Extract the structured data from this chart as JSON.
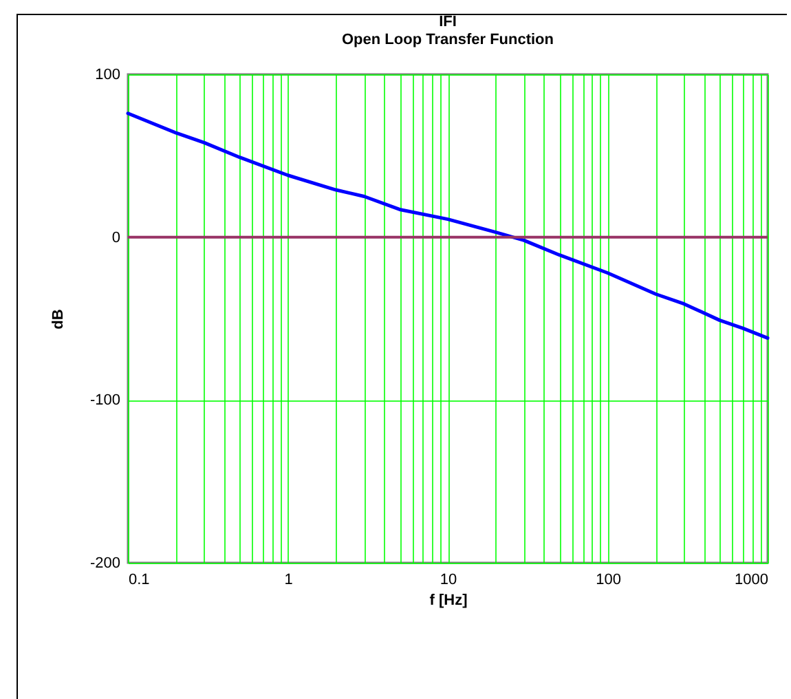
{
  "chart_data": {
    "type": "line",
    "title": "IFI",
    "subtitle": "Open Loop Transfer Function",
    "xlabel": "f [Hz]",
    "ylabel": "dB",
    "log": "x",
    "grid": true,
    "marker": "none",
    "line_style": "solid",
    "xlim": [
      0.1,
      1000
    ],
    "ylim": [
      -200,
      100
    ],
    "xticks": [
      0.1,
      {
        "value": 0.2,
        "label": null
      },
      {
        "value": 0.3,
        "label": null
      },
      {
        "value": 0.4,
        "label": null
      },
      {
        "value": 0.5,
        "label": null
      },
      {
        "value": 0.6,
        "label": null
      },
      {
        "value": 0.7,
        "label": null
      },
      {
        "value": 0.8,
        "label": null
      },
      {
        "value": 0.9,
        "label": null
      },
      1,
      {
        "value": 2,
        "label": null
      },
      {
        "value": 3,
        "label": null
      },
      {
        "value": 4,
        "label": null
      },
      {
        "value": 5,
        "label": null
      },
      {
        "value": 6,
        "label": null
      },
      {
        "value": 7,
        "label": null
      },
      {
        "value": 8,
        "label": null
      },
      {
        "value": 9,
        "label": null
      },
      10,
      {
        "value": 20,
        "label": null
      },
      {
        "value": 30,
        "label": null
      },
      {
        "value": 40,
        "label": null
      },
      {
        "value": 50,
        "label": null
      },
      {
        "value": 60,
        "label": null
      },
      {
        "value": 70,
        "label": null
      },
      {
        "value": 80,
        "label": null
      },
      {
        "value": 90,
        "label": null
      },
      100,
      {
        "value": 200,
        "label": null
      },
      {
        "value": 300,
        "label": null
      },
      {
        "value": 400,
        "label": null
      },
      {
        "value": 500,
        "label": null
      },
      {
        "value": 600,
        "label": null
      },
      {
        "value": 700,
        "label": null
      },
      {
        "value": 800,
        "label": null
      },
      {
        "value": 900,
        "label": null
      },
      1000
    ],
    "yticks": [
      -200,
      -100,
      0,
      100
    ],
    "x": [
      0.1,
      0.2,
      0.3,
      0.5,
      1,
      2,
      3,
      5,
      10,
      20,
      30,
      50,
      100,
      200,
      300,
      500,
      700,
      1000
    ],
    "series": [
      {
        "color": "#0000ff",
        "values": [
          76,
          64,
          58,
          49,
          38,
          29,
          25,
          17,
          11,
          3,
          -2,
          -11,
          -22,
          -35,
          -41,
          -51,
          -56,
          -62
        ]
      }
    ],
    "ref_lines": [
      {
        "axis": "y",
        "value": 0,
        "color": "#993366"
      }
    ]
  }
}
